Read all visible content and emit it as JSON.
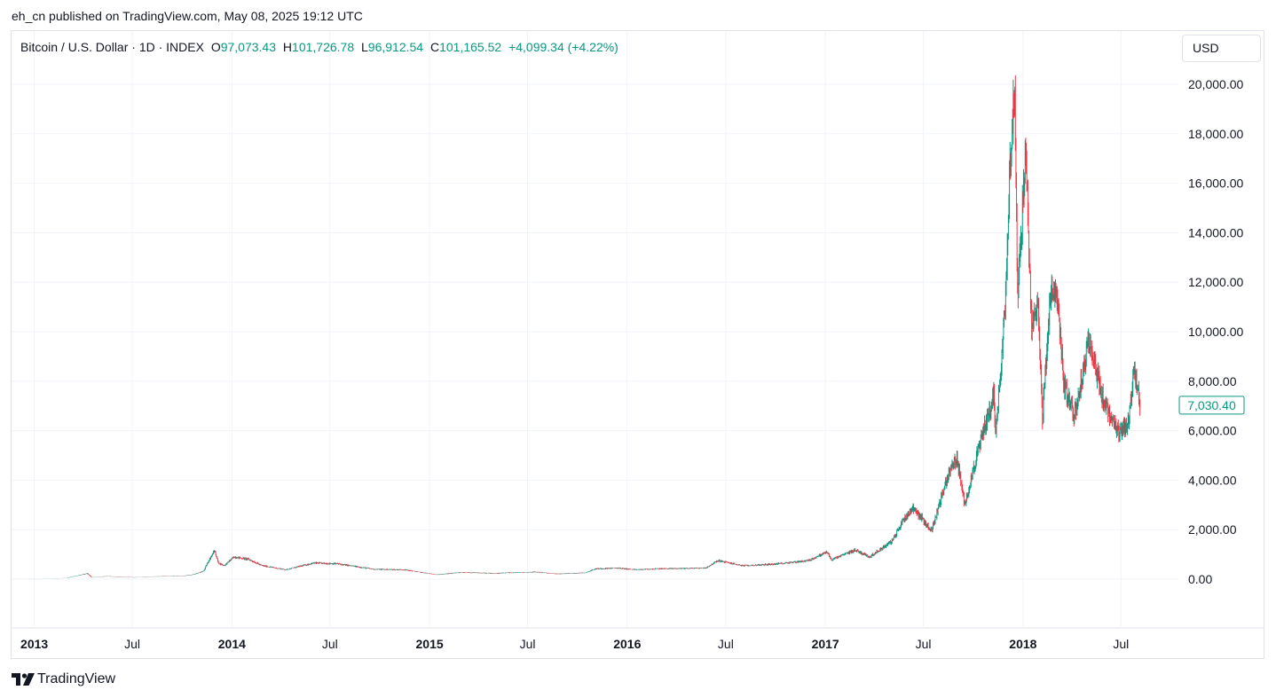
{
  "header": {
    "published_by": "eh_cn published on TradingView.com, May 08, 2025 19:12 UTC"
  },
  "legend": {
    "symbol": "Bitcoin / U.S. Dollar · 1D · INDEX",
    "open_label": "O",
    "open": "97,073.43",
    "high_label": "H",
    "high": "101,726.78",
    "low_label": "L",
    "low": "96,912.54",
    "close_label": "C",
    "close": "101,165.52",
    "change": "+4,099.34 (+4.22%)"
  },
  "currency": "USD",
  "brand": {
    "name": "TradingView"
  },
  "colors": {
    "up": "#089981",
    "down": "#f23645",
    "grid": "#f0f3fa",
    "text": "#131722"
  },
  "chart_data": {
    "type": "candlestick",
    "y_axis_ticks": [
      "20,000.00",
      "18,000.00",
      "16,000.00",
      "14,000.00",
      "12,000.00",
      "10,000.00",
      "8,000.00",
      "6,000.00",
      "4,000.00",
      "2,000.00",
      "0.00"
    ],
    "y_tick_values": [
      20000,
      18000,
      16000,
      14000,
      12000,
      10000,
      8000,
      6000,
      4000,
      2000,
      0
    ],
    "x_axis_labels": [
      {
        "label": "2013",
        "date": "2013-01-01",
        "bold": true
      },
      {
        "label": "Jul",
        "date": "2013-07-01",
        "bold": false
      },
      {
        "label": "2014",
        "date": "2014-01-01",
        "bold": true
      },
      {
        "label": "Jul",
        "date": "2014-07-01",
        "bold": false
      },
      {
        "label": "2015",
        "date": "2015-01-01",
        "bold": true
      },
      {
        "label": "Jul",
        "date": "2015-07-01",
        "bold": false
      },
      {
        "label": "2016",
        "date": "2016-01-01",
        "bold": true
      },
      {
        "label": "Jul",
        "date": "2016-07-01",
        "bold": false
      },
      {
        "label": "2017",
        "date": "2017-01-01",
        "bold": true
      },
      {
        "label": "Jul",
        "date": "2017-07-01",
        "bold": false
      },
      {
        "label": "2018",
        "date": "2018-01-01",
        "bold": true
      },
      {
        "label": "Jul",
        "date": "2018-07-01",
        "bold": false
      }
    ],
    "x_range": [
      "2012-11-20",
      "2018-10-15"
    ],
    "y_range": [
      -2000,
      20550
    ],
    "last_price": "7,030.40",
    "last_value": 7030.4,
    "grid": true,
    "price_path": [
      [
        "2012-11-20",
        12
      ],
      [
        "2013-01-01",
        13
      ],
      [
        "2013-03-01",
        40
      ],
      [
        "2013-04-09",
        230
      ],
      [
        "2013-04-17",
        70
      ],
      [
        "2013-05-15",
        115
      ],
      [
        "2013-07-05",
        70
      ],
      [
        "2013-08-15",
        110
      ],
      [
        "2013-10-01",
        125
      ],
      [
        "2013-10-25",
        200
      ],
      [
        "2013-11-10",
        330
      ],
      [
        "2013-11-18",
        700
      ],
      [
        "2013-11-30",
        1150
      ],
      [
        "2013-12-07",
        650
      ],
      [
        "2013-12-18",
        550
      ],
      [
        "2014-01-05",
        900
      ],
      [
        "2014-02-01",
        800
      ],
      [
        "2014-02-25",
        550
      ],
      [
        "2014-04-10",
        380
      ],
      [
        "2014-06-01",
        650
      ],
      [
        "2014-07-15",
        620
      ],
      [
        "2014-09-20",
        400
      ],
      [
        "2014-11-15",
        380
      ],
      [
        "2015-01-14",
        180
      ],
      [
        "2015-03-01",
        270
      ],
      [
        "2015-05-01",
        235
      ],
      [
        "2015-07-15",
        290
      ],
      [
        "2015-08-25",
        210
      ],
      [
        "2015-10-15",
        260
      ],
      [
        "2015-11-04",
        420
      ],
      [
        "2015-12-15",
        450
      ],
      [
        "2016-01-15",
        380
      ],
      [
        "2016-03-01",
        420
      ],
      [
        "2016-05-25",
        450
      ],
      [
        "2016-06-17",
        750
      ],
      [
        "2016-08-02",
        540
      ],
      [
        "2016-10-01",
        610
      ],
      [
        "2016-12-01",
        750
      ],
      [
        "2017-01-04",
        1100
      ],
      [
        "2017-01-12",
        780
      ],
      [
        "2017-02-25",
        1180
      ],
      [
        "2017-03-24",
        900
      ],
      [
        "2017-05-05",
        1550
      ],
      [
        "2017-05-25",
        2400
      ],
      [
        "2017-06-12",
        2900
      ],
      [
        "2017-07-16",
        1950
      ],
      [
        "2017-08-17",
        4300
      ],
      [
        "2017-09-01",
        4900
      ],
      [
        "2017-09-15",
        3000
      ],
      [
        "2017-10-20",
        6000
      ],
      [
        "2017-11-08",
        7400
      ],
      [
        "2017-11-12",
        5900
      ],
      [
        "2017-11-29",
        11000
      ],
      [
        "2017-12-07",
        16500
      ],
      [
        "2017-12-17",
        19700
      ],
      [
        "2017-12-22",
        11500
      ],
      [
        "2018-01-06",
        17100
      ],
      [
        "2018-01-17",
        10000
      ],
      [
        "2018-01-28",
        11500
      ],
      [
        "2018-02-06",
        6500
      ],
      [
        "2018-02-20",
        11400
      ],
      [
        "2018-03-05",
        11500
      ],
      [
        "2018-03-18",
        7800
      ],
      [
        "2018-04-06",
        6600
      ],
      [
        "2018-05-05",
        9800
      ],
      [
        "2018-05-25",
        7500
      ],
      [
        "2018-06-13",
        6400
      ],
      [
        "2018-06-28",
        5800
      ],
      [
        "2018-07-15",
        6400
      ],
      [
        "2018-07-25",
        8400
      ],
      [
        "2018-08-05",
        7030
      ]
    ]
  }
}
